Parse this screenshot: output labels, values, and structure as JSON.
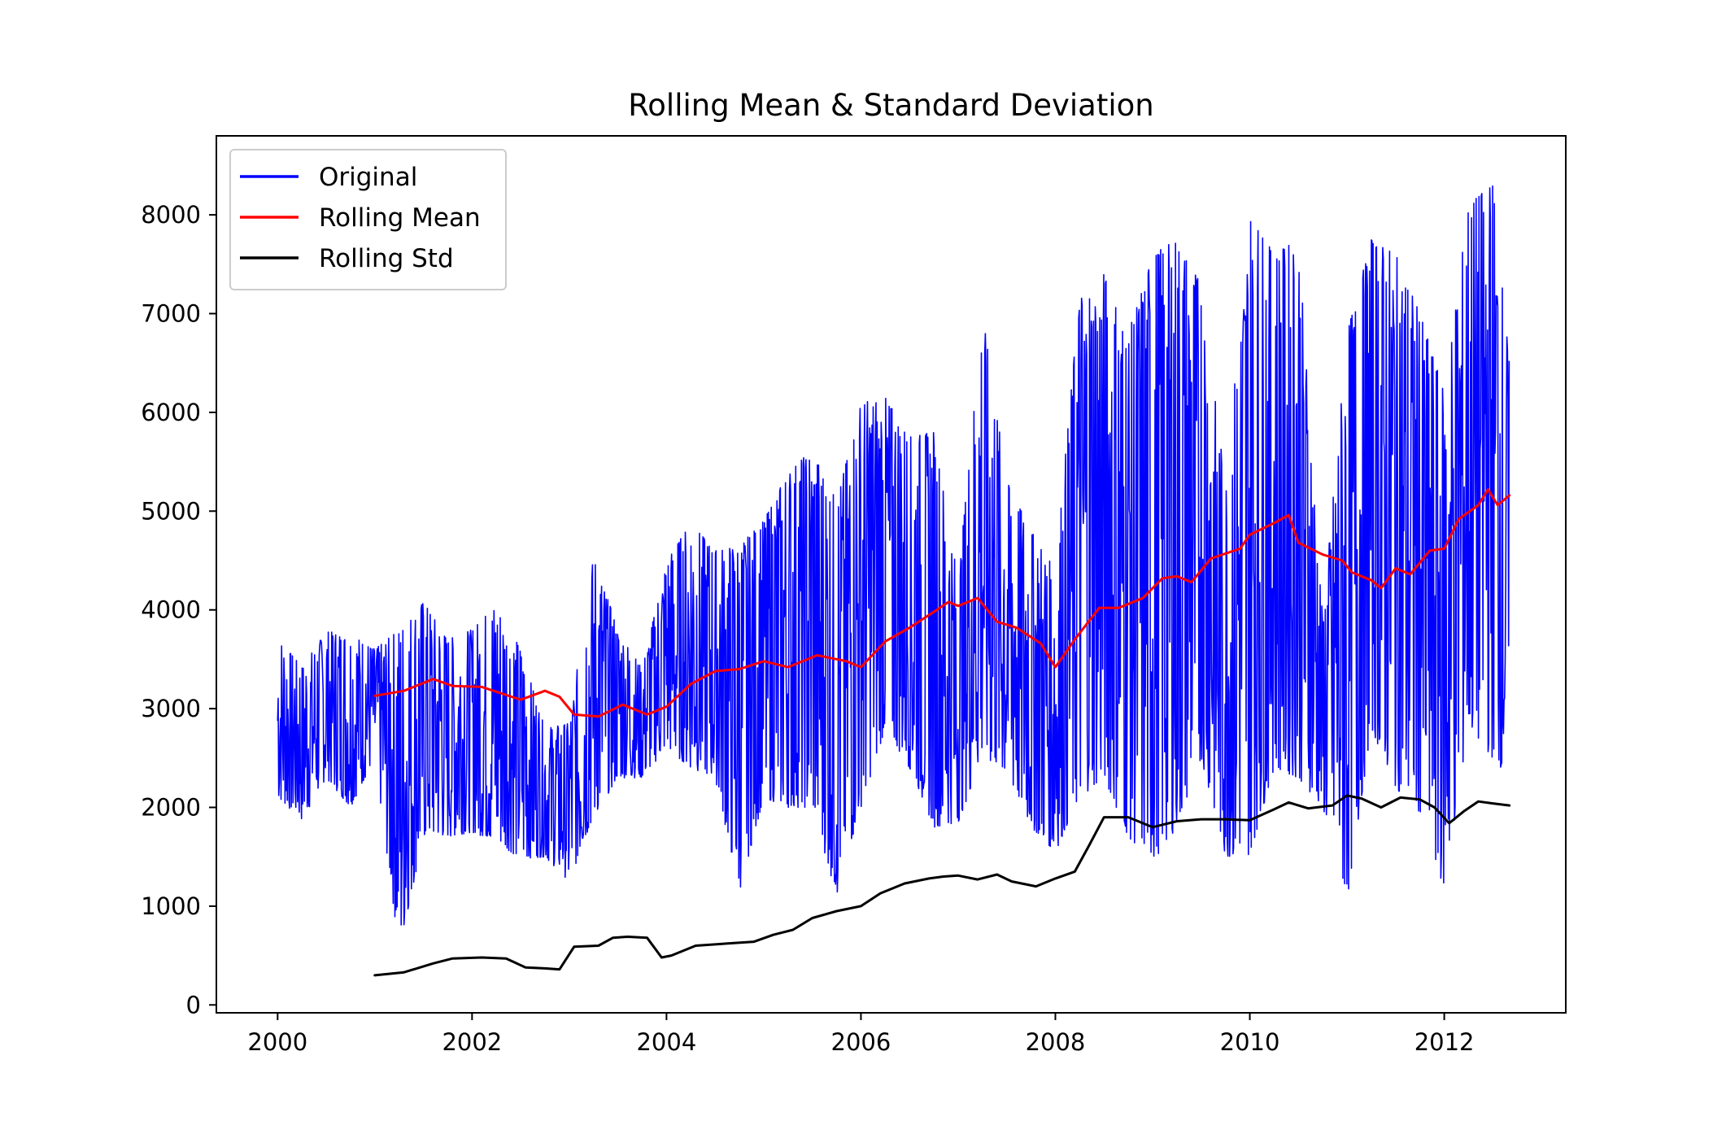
{
  "chart_data": {
    "type": "line",
    "title": "Rolling Mean & Standard Deviation",
    "xlabel": "",
    "ylabel": "",
    "xlim": [
      1999.37,
      2013.25
    ],
    "ylim": [
      -80,
      8800
    ],
    "grid": false,
    "legend_position": "top-left",
    "x_ticks": [
      {
        "value": 2000,
        "label": "2000"
      },
      {
        "value": 2002,
        "label": "2002"
      },
      {
        "value": 2004,
        "label": "2004"
      },
      {
        "value": 2006,
        "label": "2006"
      },
      {
        "value": 2008,
        "label": "2008"
      },
      {
        "value": 2010,
        "label": "2010"
      },
      {
        "value": 2012,
        "label": "2012"
      }
    ],
    "y_ticks": [
      {
        "value": 0,
        "label": "0"
      },
      {
        "value": 1000,
        "label": "1000"
      },
      {
        "value": 2000,
        "label": "2000"
      },
      {
        "value": 3000,
        "label": "3000"
      },
      {
        "value": 4000,
        "label": "4000"
      },
      {
        "value": 5000,
        "label": "5000"
      },
      {
        "value": 6000,
        "label": "6000"
      },
      {
        "value": 7000,
        "label": "7000"
      },
      {
        "value": 8000,
        "label": "8000"
      }
    ],
    "series": [
      {
        "name": "Original",
        "color": "#0000ff",
        "style": "envelope",
        "x": [
          2000.0,
          2000.25,
          2000.5,
          2000.75,
          2001.0,
          2001.25,
          2001.5,
          2001.75,
          2002.0,
          2002.25,
          2002.5,
          2002.75,
          2003.0,
          2003.25,
          2003.5,
          2003.75,
          2004.0,
          2004.25,
          2004.5,
          2004.75,
          2005.0,
          2005.25,
          2005.5,
          2005.75,
          2006.0,
          2006.25,
          2006.5,
          2006.75,
          2007.0,
          2007.25,
          2007.5,
          2007.75,
          2008.0,
          2008.25,
          2008.5,
          2008.75,
          2009.0,
          2009.25,
          2009.5,
          2009.75,
          2010.0,
          2010.25,
          2010.5,
          2010.75,
          2011.0,
          2011.25,
          2011.5,
          2011.75,
          2012.0,
          2012.25,
          2012.5,
          2012.67
        ],
        "low": [
          2100,
          1870,
          2300,
          2000,
          2500,
          550,
          1700,
          1700,
          1750,
          1650,
          1480,
          1500,
          1250,
          1900,
          2300,
          2300,
          2600,
          2400,
          2300,
          1150,
          2100,
          2000,
          2000,
          1100,
          2000,
          2800,
          2400,
          1800,
          1850,
          2500,
          2300,
          1800,
          1550,
          2100,
          2300,
          1700,
          1450,
          1800,
          2500,
          1500,
          1520,
          2400,
          2300,
          2000,
          1060,
          2800,
          2200,
          1950,
          1170,
          2800,
          2500,
          2300
        ],
        "high": [
          3720,
          3420,
          3780,
          3760,
          3600,
          3800,
          4080,
          3700,
          3800,
          4060,
          3600,
          2800,
          2850,
          4540,
          3800,
          3400,
          4500,
          4880,
          4600,
          4650,
          4900,
          5400,
          5620,
          5100,
          6100,
          6150,
          5750,
          5800,
          4300,
          7000,
          5300,
          4800,
          4400,
          7200,
          7400,
          6800,
          7600,
          7750,
          7300,
          5260,
          8000,
          7600,
          7750,
          3900,
          6800,
          7750,
          7600,
          7000,
          6200,
          8100,
          8320,
          6500
        ],
        "seed": 7
      },
      {
        "name": "Rolling Mean",
        "color": "#ff0000",
        "style": "line",
        "x": [
          2001.0,
          2001.3,
          2001.6,
          2001.8,
          2002.1,
          2002.5,
          2002.75,
          2002.9,
          2003.05,
          2003.3,
          2003.55,
          2003.8,
          2004.0,
          2004.25,
          2004.5,
          2004.75,
          2005.0,
          2005.25,
          2005.55,
          2005.85,
          2006.0,
          2006.25,
          2006.5,
          2006.75,
          2006.9,
          2007.0,
          2007.2,
          2007.4,
          2007.6,
          2007.85,
          2008.0,
          2008.2,
          2008.45,
          2008.65,
          2008.9,
          2009.1,
          2009.25,
          2009.4,
          2009.6,
          2009.9,
          2010.0,
          2010.25,
          2010.4,
          2010.5,
          2010.75,
          2010.95,
          2011.05,
          2011.25,
          2011.35,
          2011.5,
          2011.65,
          2011.85,
          2012.0,
          2012.15,
          2012.35,
          2012.45,
          2012.55,
          2012.67
        ],
        "y": [
          3130,
          3180,
          3300,
          3230,
          3220,
          3090,
          3180,
          3120,
          2940,
          2920,
          3040,
          2940,
          3020,
          3250,
          3380,
          3400,
          3480,
          3420,
          3540,
          3480,
          3420,
          3680,
          3820,
          3980,
          4080,
          4040,
          4120,
          3880,
          3820,
          3660,
          3420,
          3700,
          4020,
          4020,
          4120,
          4320,
          4340,
          4280,
          4520,
          4620,
          4760,
          4880,
          4960,
          4680,
          4560,
          4500,
          4380,
          4300,
          4220,
          4420,
          4360,
          4600,
          4620,
          4920,
          5060,
          5220,
          5060,
          5160
        ]
      },
      {
        "name": "Rolling Std",
        "color": "#000000",
        "style": "line",
        "x": [
          2001.0,
          2001.3,
          2001.6,
          2001.8,
          2002.1,
          2002.35,
          2002.55,
          2002.75,
          2002.9,
          2003.05,
          2003.3,
          2003.45,
          2003.6,
          2003.8,
          2003.95,
          2004.05,
          2004.3,
          2004.6,
          2004.9,
          2005.1,
          2005.3,
          2005.5,
          2005.75,
          2006.0,
          2006.2,
          2006.45,
          2006.7,
          2006.85,
          2007.0,
          2007.2,
          2007.4,
          2007.55,
          2007.8,
          2008.0,
          2008.2,
          2008.35,
          2008.5,
          2008.75,
          2009.0,
          2009.25,
          2009.5,
          2009.75,
          2010.0,
          2010.25,
          2010.4,
          2010.6,
          2010.85,
          2011.0,
          2011.15,
          2011.35,
          2011.55,
          2011.75,
          2011.9,
          2012.05,
          2012.2,
          2012.35,
          2012.5,
          2012.67
        ],
        "y": [
          300,
          330,
          420,
          470,
          480,
          470,
          380,
          370,
          360,
          590,
          600,
          680,
          690,
          680,
          480,
          500,
          600,
          620,
          640,
          710,
          760,
          880,
          950,
          1000,
          1130,
          1230,
          1280,
          1300,
          1310,
          1270,
          1320,
          1250,
          1200,
          1280,
          1350,
          1620,
          1900,
          1900,
          1800,
          1860,
          1880,
          1880,
          1870,
          1980,
          2050,
          1990,
          2020,
          2120,
          2090,
          2000,
          2100,
          2080,
          2000,
          1840,
          1960,
          2060,
          2040,
          2020
        ]
      }
    ]
  }
}
